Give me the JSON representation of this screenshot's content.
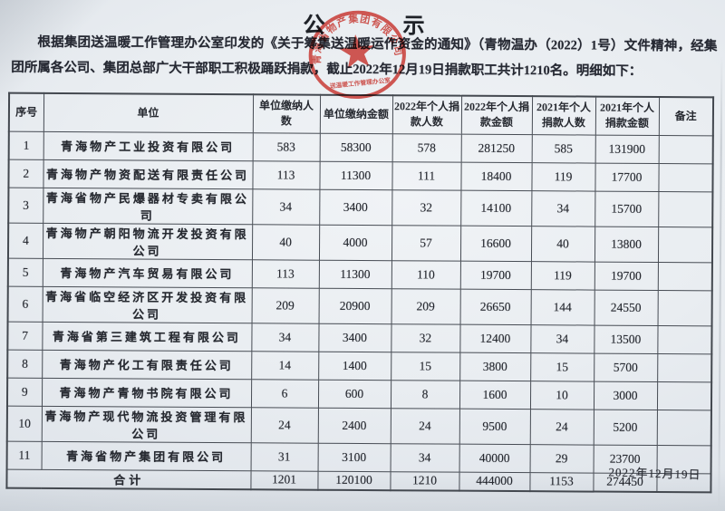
{
  "page": {
    "title": "公示",
    "intro": "根据集团送温暖工作管理办公室印发的《关于筹集送温暖运作资金的通知》（青物温办（2022）1号）文件精神，经集团所属各公司、集团总部广大干部职工积极踊跃捐款，截止2022年12月19日捐款职工共计1210名。明细如下：",
    "footer_date": "2022年12月19日"
  },
  "stamp": {
    "ring_text": "青海省物产集团有限公司",
    "bottom_text": "送温暖工作管理办公室",
    "color": "#c23129"
  },
  "table": {
    "headers": [
      "序号",
      "单位",
      "单位缴纳人数",
      "单位缴纳金额",
      "2022年个人捐款人数",
      "2022年个人捐款金额",
      "2021年个人捐款人数",
      "2021年个人捐款金额",
      "备注"
    ],
    "rows": [
      {
        "no": "1",
        "unit": "青海物产工业投资有限公司",
        "values": [
          "583",
          "58300",
          "578",
          "281250",
          "585",
          "131900"
        ],
        "note": ""
      },
      {
        "no": "2",
        "unit": "青海物产物资配送有限责任公司",
        "values": [
          "113",
          "11300",
          "111",
          "18400",
          "119",
          "17700"
        ],
        "note": ""
      },
      {
        "no": "3",
        "unit": "青海省物产民爆器材专卖有限公司",
        "values": [
          "34",
          "3400",
          "32",
          "14100",
          "34",
          "15700"
        ],
        "note": ""
      },
      {
        "no": "4",
        "unit": "青海物产朝阳物流开发投资有限公司",
        "values": [
          "40",
          "4000",
          "57",
          "16600",
          "40",
          "13800"
        ],
        "note": ""
      },
      {
        "no": "5",
        "unit": "青海物产汽车贸易有限公司",
        "values": [
          "113",
          "11300",
          "110",
          "19700",
          "119",
          "19700"
        ],
        "note": ""
      },
      {
        "no": "6",
        "unit": "青海省临空经济区开发投资有限公司",
        "values": [
          "209",
          "20900",
          "209",
          "26650",
          "144",
          "24550"
        ],
        "note": ""
      },
      {
        "no": "7",
        "unit": "青海省第三建筑工程有限公司",
        "values": [
          "34",
          "3400",
          "32",
          "12400",
          "34",
          "13500"
        ],
        "note": ""
      },
      {
        "no": "8",
        "unit": "青海物产化工有限责任公司",
        "values": [
          "14",
          "1400",
          "15",
          "3800",
          "15",
          "5700"
        ],
        "note": ""
      },
      {
        "no": "9",
        "unit": "青海物产青物书院有限公司",
        "values": [
          "6",
          "600",
          "8",
          "1600",
          "10",
          "3000"
        ],
        "note": ""
      },
      {
        "no": "10",
        "unit": "青海物产现代物流投资管理有限公司",
        "values": [
          "24",
          "2400",
          "24",
          "9500",
          "24",
          "5200"
        ],
        "note": ""
      },
      {
        "no": "11",
        "unit": "青海省物产集团有限公司",
        "values": [
          "31",
          "3100",
          "34",
          "40000",
          "29",
          "23700"
        ],
        "note": ""
      }
    ],
    "total": {
      "label": "合计",
      "values": [
        "1201",
        "120100",
        "1210",
        "444000",
        "1153",
        "274450"
      ],
      "note": ""
    }
  }
}
